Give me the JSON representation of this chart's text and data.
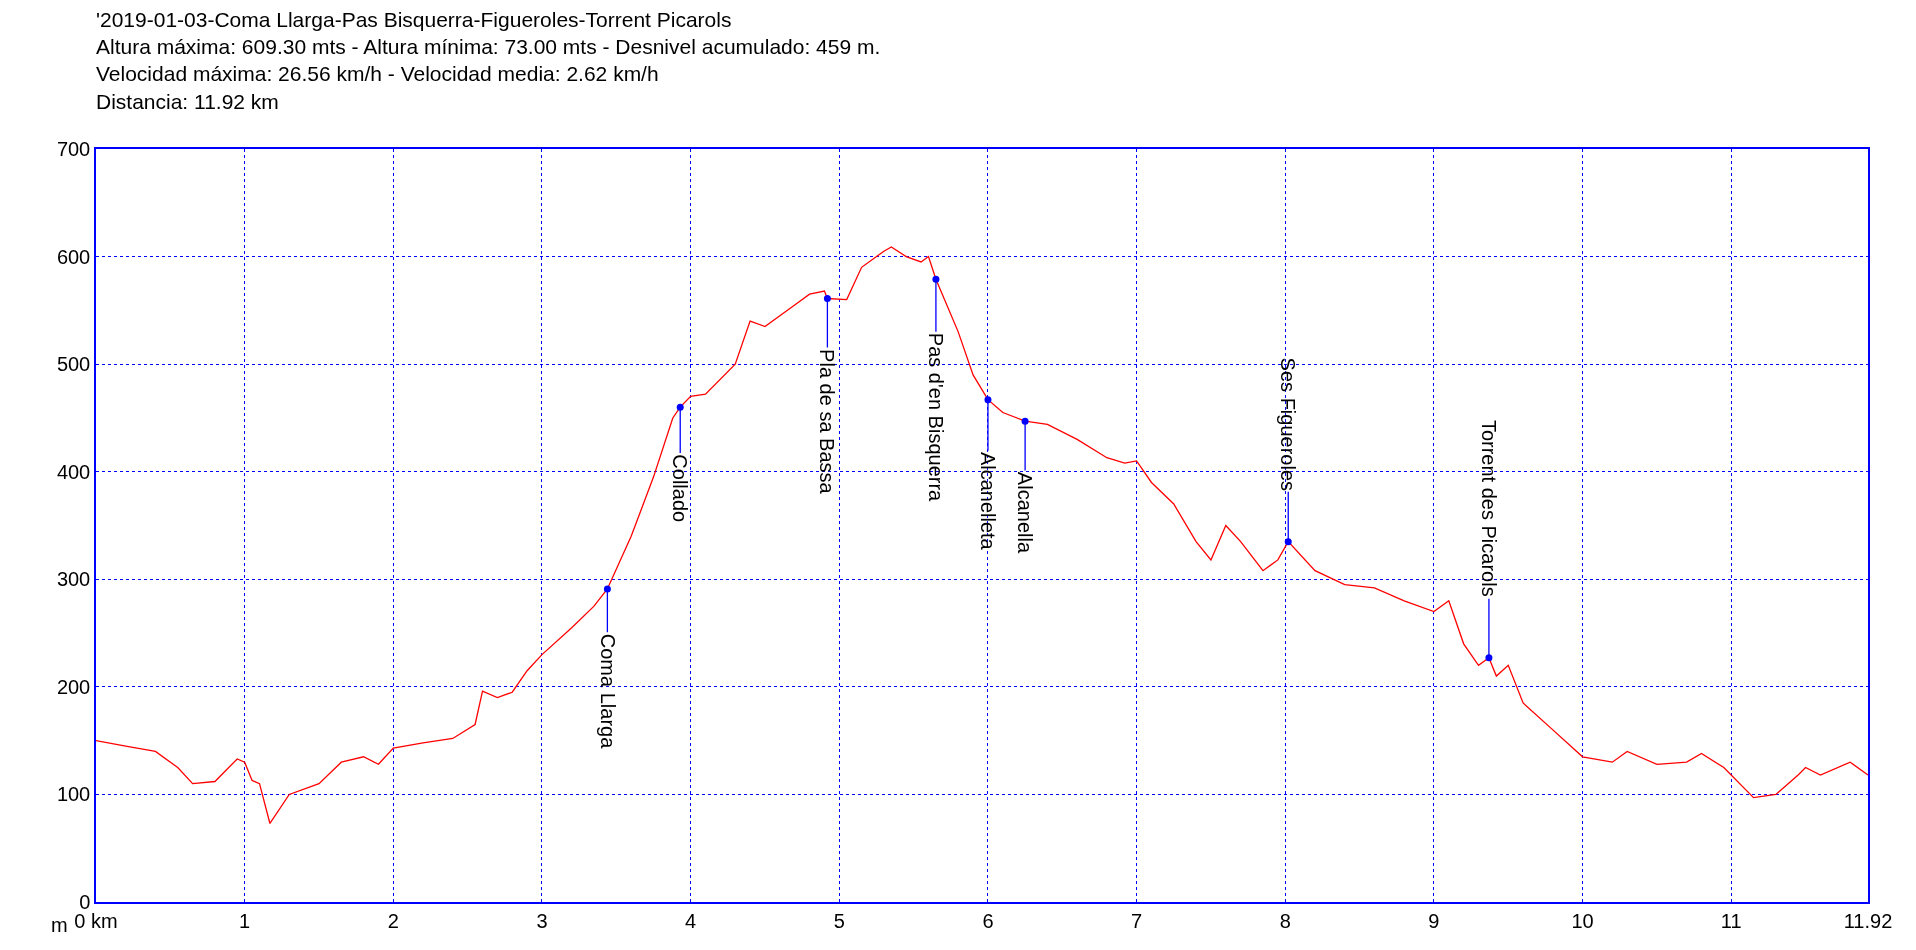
{
  "chart_data": {
    "type": "line",
    "title": "'2019-01-03-Coma Llarga-Pas Bisquerra-Figueroles-Torrent Picarols\nAltura máxima: 609.30 mts - Altura mínima: 73.00 mts - Desnivel acumulado: 459 m.\nVelocidad máxima: 26.56 km/h - Velocidad media: 2.62 km/h\nDistancia: 11.92 km",
    "ylabel": "m",
    "x": [
      0,
      0.2,
      0.4,
      0.55,
      0.65,
      0.8,
      0.95,
      1.0,
      1.05,
      1.1,
      1.17,
      1.3,
      1.5,
      1.65,
      1.8,
      1.9,
      2.0,
      2.2,
      2.4,
      2.55,
      2.6,
      2.7,
      2.8,
      2.9,
      3.0,
      3.2,
      3.35,
      3.44,
      3.6,
      3.75,
      3.88,
      3.93,
      4.0,
      4.1,
      4.3,
      4.4,
      4.5,
      4.7,
      4.8,
      4.9,
      4.92,
      5.05,
      5.15,
      5.3,
      5.35,
      5.45,
      5.55,
      5.6,
      5.65,
      5.8,
      5.9,
      6.0,
      6.1,
      6.25,
      6.4,
      6.6,
      6.8,
      6.92,
      7.0,
      7.1,
      7.25,
      7.4,
      7.5,
      7.6,
      7.7,
      7.85,
      7.95,
      8.02,
      8.2,
      8.4,
      8.6,
      8.8,
      9.0,
      9.1,
      9.2,
      9.3,
      9.37,
      9.42,
      9.5,
      9.6,
      9.8,
      10.0,
      10.2,
      10.3,
      10.5,
      10.7,
      10.8,
      10.95,
      11.15,
      11.3,
      11.45,
      11.5,
      11.6,
      11.8,
      11.92
    ],
    "series": [
      {
        "color": "#ff0000",
        "values": [
          150,
          145,
          140,
          125,
          110,
          112,
          133,
          130,
          113,
          110,
          73,
          100,
          110,
          130,
          135,
          128,
          143,
          148,
          152,
          165,
          196,
          190,
          195,
          215,
          230,
          255,
          275,
          291,
          340,
          395,
          450,
          460,
          470,
          472,
          500,
          540,
          535,
          555,
          565,
          568,
          561,
          560,
          590,
          605,
          609,
          600,
          595,
          600,
          579,
          530,
          490,
          467,
          455,
          447,
          444,
          430,
          413,
          408,
          410,
          390,
          370,
          335,
          318,
          350,
          335,
          308,
          318,
          335,
          308,
          295,
          292,
          280,
          270,
          280,
          240,
          220,
          227,
          210,
          220,
          185,
          160,
          135,
          130,
          140,
          128,
          130,
          138,
          125,
          97,
          100,
          118,
          125,
          118,
          130,
          118
        ]
      }
    ],
    "xlim": [
      0,
      11.92
    ],
    "ylim": [
      0,
      700
    ],
    "xticks": [
      {
        "value": 0,
        "label": "0 km"
      },
      1,
      2,
      3,
      4,
      5,
      6,
      7,
      8,
      9,
      10,
      11,
      11.92
    ],
    "yticks": [
      0,
      100,
      200,
      300,
      400,
      500,
      600,
      700
    ],
    "grid": true,
    "marker": "none",
    "line_style": "solid",
    "annotations": [
      {
        "text": "Coma Llarga",
        "x": 3.44,
        "y": 291
      },
      {
        "text": "Collado",
        "x": 3.93,
        "y": 460
      },
      {
        "text": "Pla de sa Bassa",
        "x": 4.92,
        "y": 561
      },
      {
        "text": "Pas d'en Bisquerra",
        "x": 5.65,
        "y": 579
      },
      {
        "text": "Alcanelleta",
        "x": 6.0,
        "y": 467
      },
      {
        "text": "Alcanella",
        "x": 6.25,
        "y": 447
      },
      {
        "text": "Ses Figueroles",
        "x": 8.02,
        "y": 335
      },
      {
        "text": "Torrent des Picarols",
        "x": 9.37,
        "y": 227
      }
    ]
  }
}
